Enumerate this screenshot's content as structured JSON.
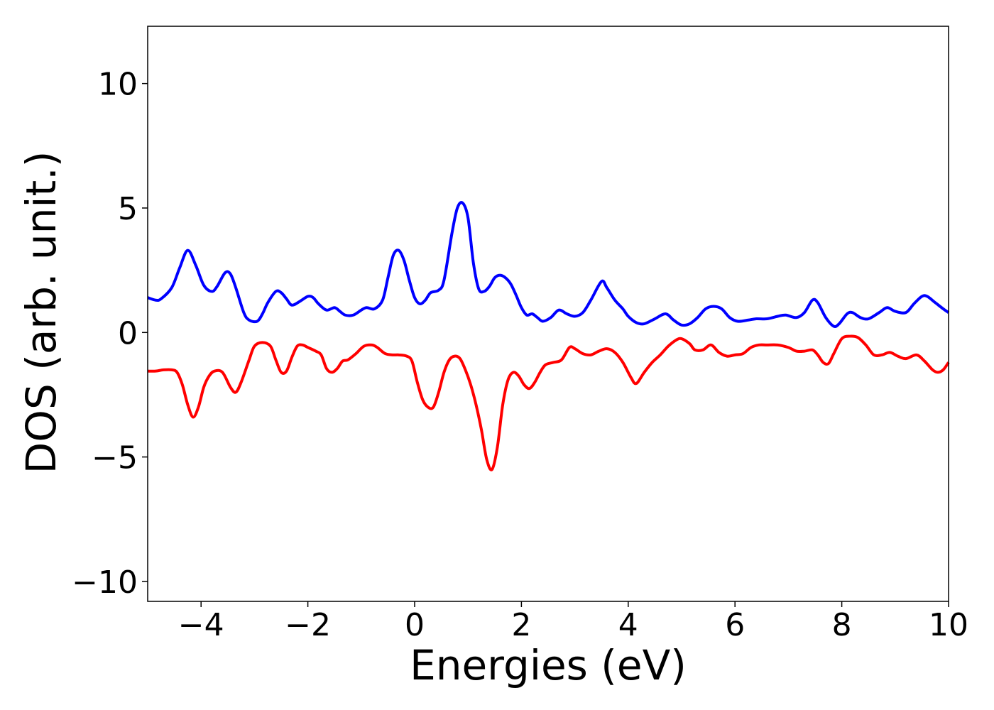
{
  "chart_data": {
    "type": "line",
    "title": "",
    "xlabel": "Energies (eV)",
    "ylabel": "DOS (arb. unit.)",
    "xlim": [
      -5,
      10
    ],
    "ylim": [
      -10.8,
      12.3
    ],
    "x_ticks": [
      -4,
      -2,
      0,
      2,
      4,
      6,
      8,
      10
    ],
    "x_tick_labels": [
      "−4",
      "−2",
      "0",
      "2",
      "4",
      "6",
      "8",
      "10"
    ],
    "y_ticks": [
      -10,
      -5,
      0,
      5,
      10
    ],
    "y_tick_labels": [
      "−10",
      "−5",
      "0",
      "5",
      "10"
    ],
    "grid": false,
    "legend": "none",
    "series": [
      {
        "color": "#0000ff",
        "x": [
          -5.0,
          -4.85,
          -4.75,
          -4.55,
          -4.4,
          -4.25,
          -4.1,
          -3.95,
          -3.8,
          -3.7,
          -3.55,
          -3.45,
          -3.35,
          -3.2,
          -3.1,
          -2.95,
          -2.85,
          -2.75,
          -2.6,
          -2.5,
          -2.4,
          -2.3,
          -2.15,
          -2.0,
          -1.9,
          -1.8,
          -1.65,
          -1.5,
          -1.4,
          -1.3,
          -1.15,
          -1.0,
          -0.9,
          -0.75,
          -0.6,
          -0.5,
          -0.4,
          -0.3,
          -0.2,
          -0.1,
          0.0,
          0.1,
          0.2,
          0.3,
          0.45,
          0.55,
          0.7,
          0.8,
          0.9,
          1.0,
          1.1,
          1.2,
          1.3,
          1.4,
          1.5,
          1.6,
          1.7,
          1.8,
          1.9,
          2.0,
          2.1,
          2.2,
          2.3,
          2.4,
          2.55,
          2.7,
          2.85,
          3.0,
          3.15,
          3.3,
          3.5,
          3.6,
          3.75,
          3.9,
          4.0,
          4.15,
          4.3,
          4.5,
          4.7,
          4.85,
          5.0,
          5.15,
          5.3,
          5.45,
          5.6,
          5.75,
          5.9,
          6.05,
          6.25,
          6.4,
          6.6,
          6.8,
          6.95,
          7.15,
          7.3,
          7.45,
          7.55,
          7.7,
          7.85,
          7.95,
          8.1,
          8.2,
          8.35,
          8.5,
          8.7,
          8.85,
          9.0,
          9.2,
          9.35,
          9.5,
          9.6,
          9.75,
          9.9,
          10.0
        ],
        "y": [
          1.4,
          1.3,
          1.35,
          1.8,
          2.6,
          3.3,
          2.7,
          1.9,
          1.65,
          1.85,
          2.4,
          2.35,
          1.8,
          0.8,
          0.5,
          0.45,
          0.75,
          1.2,
          1.65,
          1.6,
          1.35,
          1.1,
          1.25,
          1.45,
          1.4,
          1.15,
          0.9,
          1.0,
          0.85,
          0.7,
          0.7,
          0.9,
          1.0,
          0.95,
          1.3,
          2.2,
          3.1,
          3.3,
          2.9,
          2.1,
          1.4,
          1.15,
          1.3,
          1.6,
          1.7,
          2.1,
          4.0,
          5.0,
          5.2,
          4.6,
          2.8,
          1.75,
          1.65,
          1.85,
          2.2,
          2.3,
          2.2,
          1.95,
          1.5,
          1.0,
          0.7,
          0.75,
          0.6,
          0.45,
          0.6,
          0.9,
          0.75,
          0.65,
          0.8,
          1.3,
          2.05,
          1.8,
          1.3,
          0.95,
          0.65,
          0.4,
          0.35,
          0.55,
          0.75,
          0.5,
          0.3,
          0.35,
          0.6,
          0.95,
          1.05,
          0.95,
          0.6,
          0.45,
          0.5,
          0.55,
          0.55,
          0.65,
          0.7,
          0.6,
          0.8,
          1.3,
          1.2,
          0.6,
          0.25,
          0.35,
          0.75,
          0.8,
          0.6,
          0.55,
          0.8,
          1.0,
          0.85,
          0.8,
          1.15,
          1.45,
          1.45,
          1.2,
          0.95,
          0.8
        ]
      },
      {
        "color": "#ff0000",
        "x": [
          -5.0,
          -4.85,
          -4.7,
          -4.55,
          -4.45,
          -4.35,
          -4.25,
          -4.15,
          -4.05,
          -3.95,
          -3.85,
          -3.75,
          -3.6,
          -3.45,
          -3.35,
          -3.25,
          -3.1,
          -3.0,
          -2.85,
          -2.7,
          -2.6,
          -2.5,
          -2.4,
          -2.3,
          -2.2,
          -2.1,
          -2.0,
          -1.85,
          -1.75,
          -1.65,
          -1.55,
          -1.45,
          -1.35,
          -1.25,
          -1.1,
          -0.95,
          -0.8,
          -0.7,
          -0.55,
          -0.4,
          -0.3,
          -0.15,
          -0.05,
          0.05,
          0.15,
          0.25,
          0.35,
          0.45,
          0.55,
          0.65,
          0.75,
          0.85,
          0.95,
          1.05,
          1.15,
          1.25,
          1.35,
          1.45,
          1.55,
          1.65,
          1.75,
          1.85,
          1.95,
          2.05,
          2.15,
          2.25,
          2.35,
          2.45,
          2.6,
          2.75,
          2.9,
          3.0,
          3.15,
          3.3,
          3.45,
          3.6,
          3.75,
          3.9,
          4.05,
          4.15,
          4.3,
          4.45,
          4.6,
          4.75,
          4.9,
          5.0,
          5.15,
          5.25,
          5.4,
          5.55,
          5.7,
          5.85,
          6.0,
          6.15,
          6.3,
          6.45,
          6.6,
          6.8,
          7.0,
          7.15,
          7.3,
          7.45,
          7.55,
          7.65,
          7.75,
          7.85,
          8.0,
          8.15,
          8.3,
          8.45,
          8.6,
          8.75,
          8.9,
          9.05,
          9.2,
          9.4,
          9.55,
          9.7,
          9.8,
          9.9,
          10.0
        ],
        "y": [
          -1.55,
          -1.55,
          -1.5,
          -1.5,
          -1.6,
          -2.1,
          -2.9,
          -3.4,
          -3.0,
          -2.2,
          -1.75,
          -1.55,
          -1.6,
          -2.2,
          -2.4,
          -2.0,
          -1.1,
          -0.55,
          -0.4,
          -0.55,
          -1.1,
          -1.6,
          -1.55,
          -1.0,
          -0.55,
          -0.5,
          -0.6,
          -0.75,
          -0.9,
          -1.45,
          -1.6,
          -1.45,
          -1.15,
          -1.1,
          -0.85,
          -0.55,
          -0.5,
          -0.6,
          -0.85,
          -0.9,
          -0.9,
          -0.95,
          -1.15,
          -2.0,
          -2.7,
          -3.0,
          -3.0,
          -2.4,
          -1.6,
          -1.1,
          -0.95,
          -1.05,
          -1.5,
          -2.1,
          -2.9,
          -3.9,
          -5.1,
          -5.5,
          -4.6,
          -2.9,
          -1.9,
          -1.6,
          -1.75,
          -2.1,
          -2.25,
          -2.0,
          -1.6,
          -1.3,
          -1.2,
          -1.1,
          -0.6,
          -0.65,
          -0.85,
          -0.9,
          -0.75,
          -0.65,
          -0.8,
          -1.2,
          -1.8,
          -2.05,
          -1.6,
          -1.2,
          -0.9,
          -0.55,
          -0.3,
          -0.25,
          -0.45,
          -0.7,
          -0.7,
          -0.5,
          -0.8,
          -0.95,
          -0.9,
          -0.85,
          -0.6,
          -0.5,
          -0.5,
          -0.5,
          -0.6,
          -0.75,
          -0.75,
          -0.7,
          -0.9,
          -1.2,
          -1.25,
          -0.85,
          -0.25,
          -0.15,
          -0.2,
          -0.5,
          -0.9,
          -0.9,
          -0.8,
          -0.95,
          -1.05,
          -0.9,
          -1.15,
          -1.5,
          -1.6,
          -1.5,
          -1.2
        ]
      }
    ]
  }
}
